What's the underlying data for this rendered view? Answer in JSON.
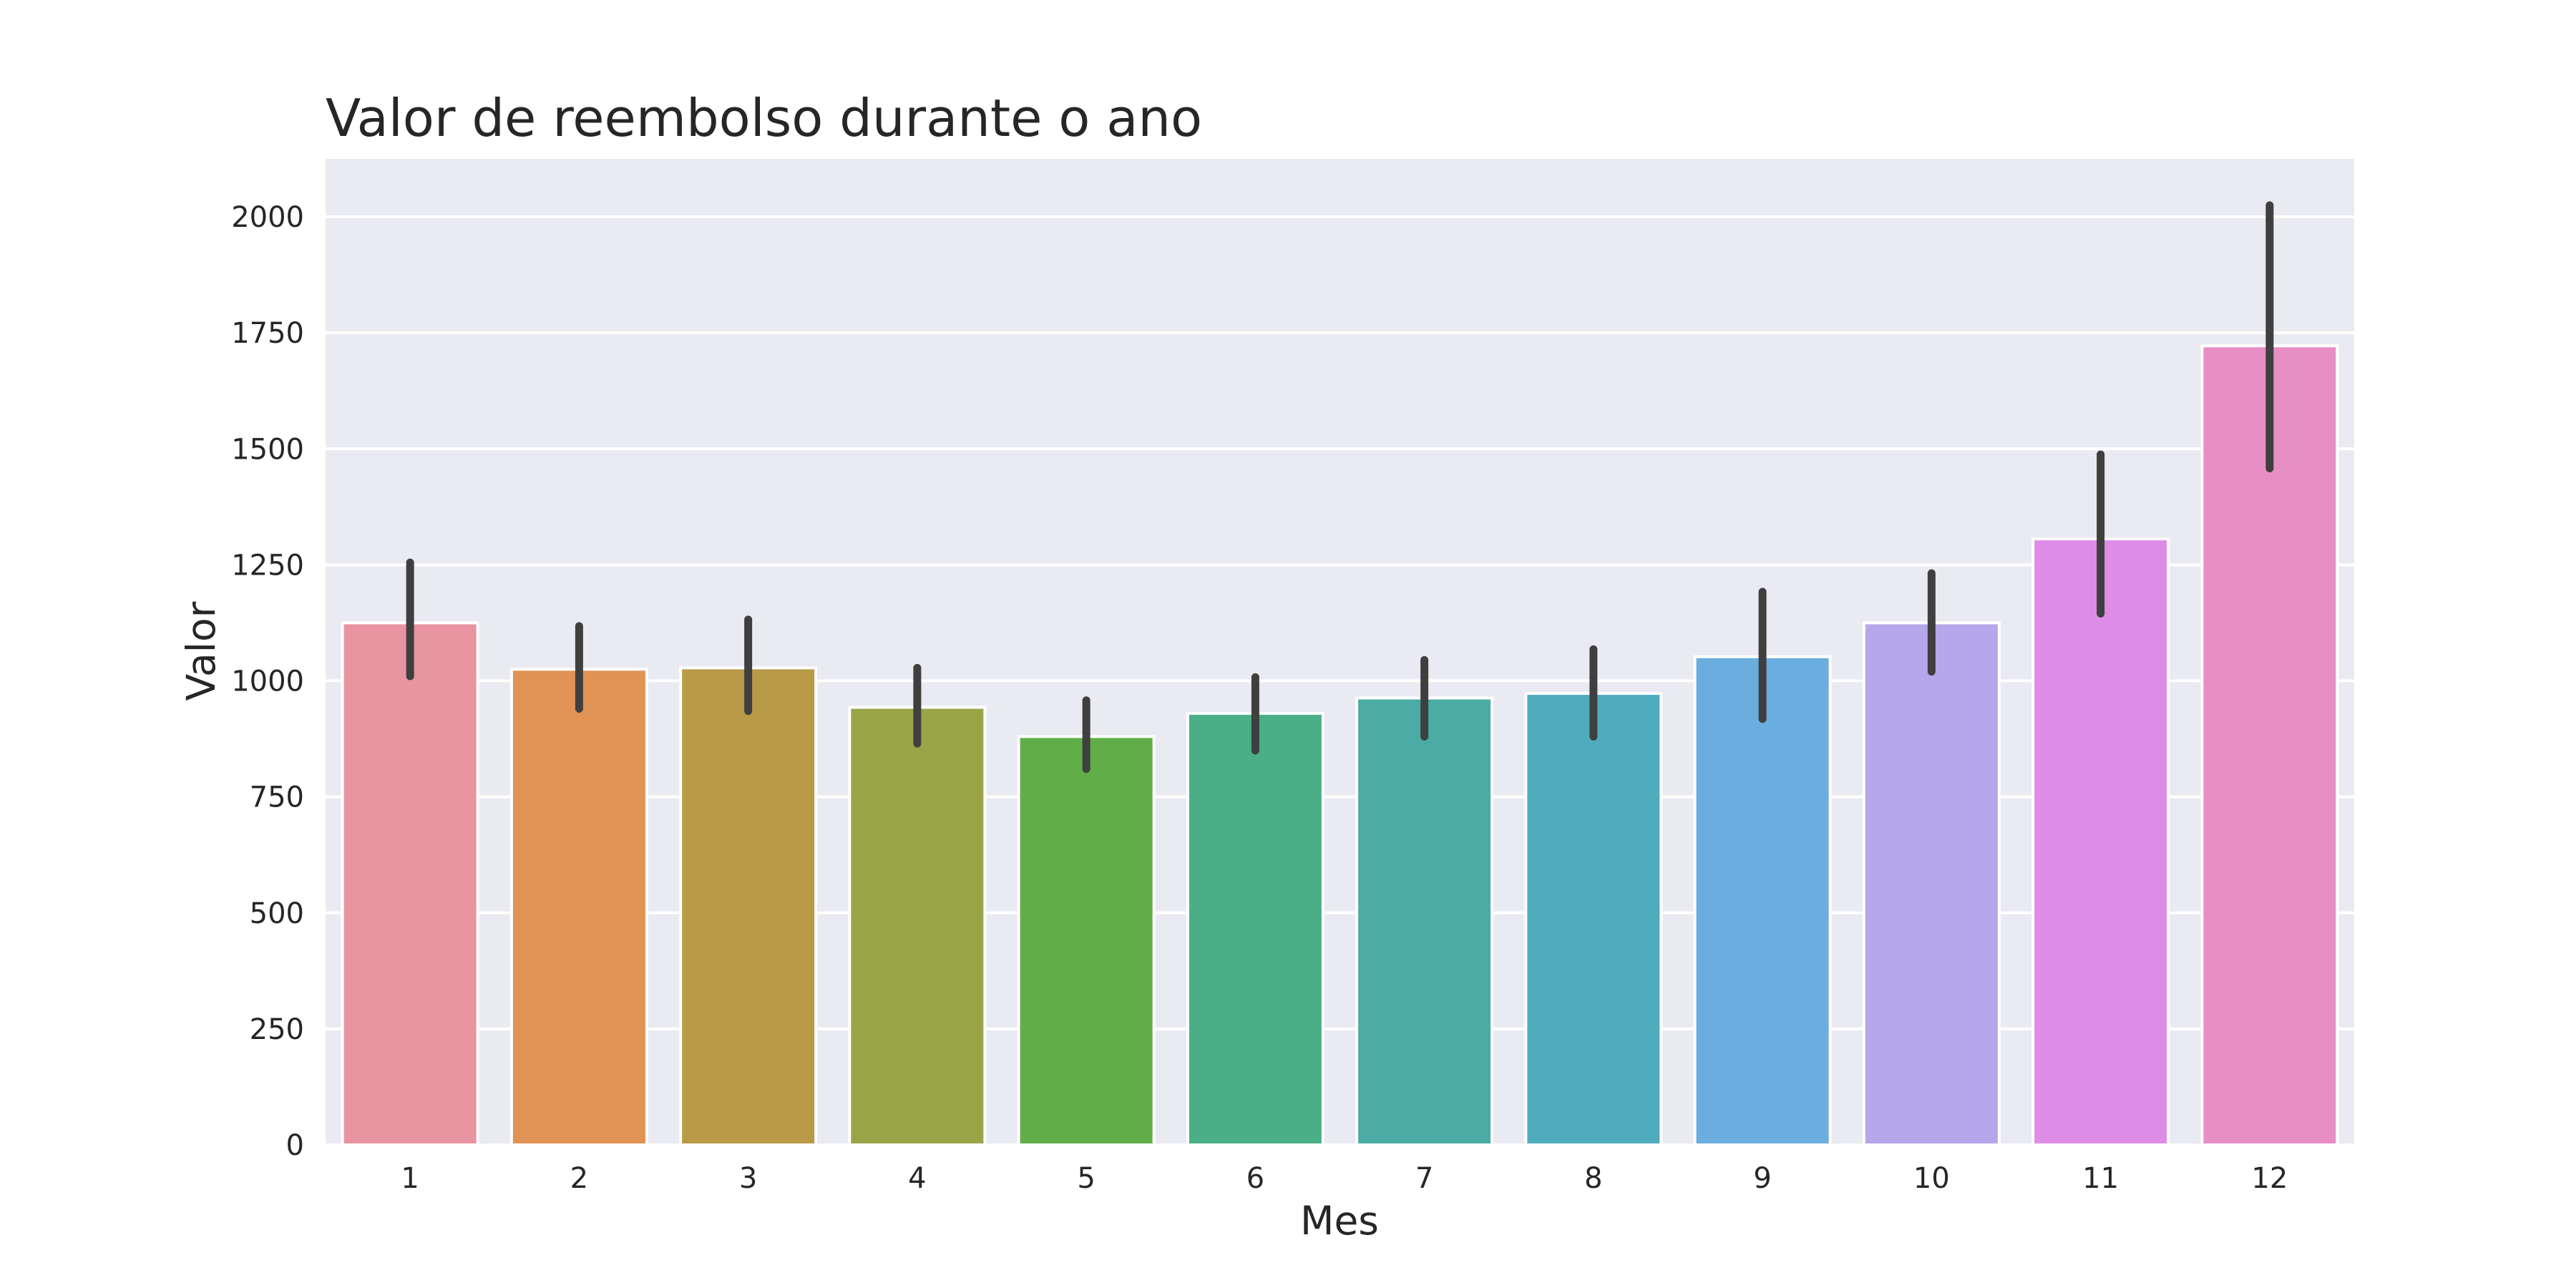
{
  "chart_data": {
    "type": "bar",
    "title": "Valor de reembolso durante o ano",
    "xlabel": "Mes",
    "ylabel": "Valor",
    "categories": [
      "1",
      "2",
      "3",
      "4",
      "5",
      "6",
      "7",
      "8",
      "9",
      "10",
      "11",
      "12"
    ],
    "values": [
      1125,
      1025,
      1028,
      943,
      880,
      930,
      963,
      973,
      1052,
      1125,
      1306,
      1722
    ],
    "error_bars": [
      [
        1010,
        1255
      ],
      [
        940,
        1118
      ],
      [
        935,
        1132
      ],
      [
        865,
        1028
      ],
      [
        810,
        958
      ],
      [
        850,
        1008
      ],
      [
        880,
        1045
      ],
      [
        880,
        1068
      ],
      [
        918,
        1192
      ],
      [
        1020,
        1232
      ],
      [
        1145,
        1488
      ],
      [
        1458,
        2025
      ]
    ],
    "colors": [
      "#e994a1",
      "#e19255",
      "#b89a47",
      "#99a447",
      "#61ae48",
      "#4aae86",
      "#4aaca5",
      "#4facbc",
      "#6badde",
      "#b5a7ea",
      "#df8ce7",
      "#e78fc5"
    ],
    "ylim": [
      0,
      2125
    ],
    "yticks": [
      0,
      250,
      500,
      750,
      1000,
      1250,
      1500,
      1750,
      2000
    ],
    "grid": true,
    "legend": "none",
    "style": {
      "background": "#eaeaf2",
      "grid_color": "#ffffff",
      "error_color": "#3f3f3f",
      "text_color": "#262626"
    }
  }
}
